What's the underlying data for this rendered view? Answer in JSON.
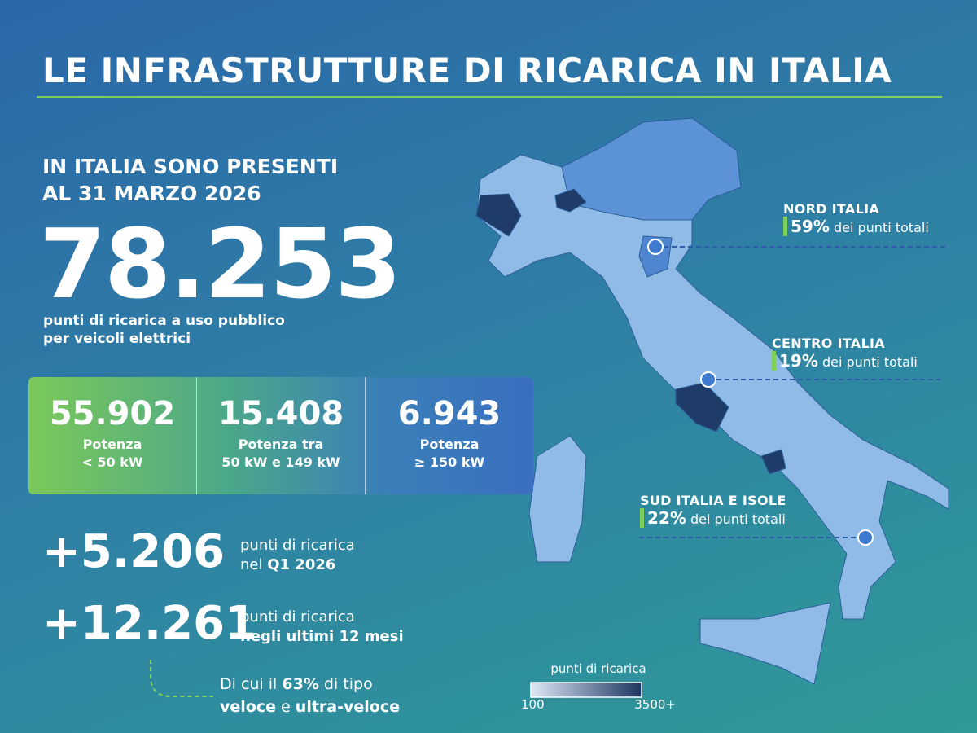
{
  "header": {
    "title": "LE INFRASTRUTTURE DI RICARICA IN ITALIA"
  },
  "intro": {
    "lines": [
      "IN ITALIA SONO PRESENTI",
      "AL 31 MARZO 2026"
    ],
    "total": "78.253",
    "caption_lines": [
      "punti di ricarica a uso pubblico",
      "per veicoli elettrici"
    ]
  },
  "power_boxes": [
    {
      "value": "55.902",
      "label_lines": [
        "Potenza",
        "< 50 kW"
      ]
    },
    {
      "value": "15.408",
      "label_lines": [
        "Potenza tra",
        "50 kW e 149 kW"
      ]
    },
    {
      "value": "6.943",
      "label_lines": [
        "Potenza",
        "≥ 150 kW"
      ]
    }
  ],
  "growth": [
    {
      "value": "+5.206",
      "line1": "punti di ricarica",
      "line2_normal": "nel",
      "line2_bold": "Q1 2026"
    },
    {
      "value": "+12.261",
      "line1": "punti di ricarica",
      "line2_bold": "negli ultimi 12 mesi"
    }
  ],
  "note": {
    "line1": [
      "Di cui il",
      "63%",
      "di tipo"
    ],
    "line2": [
      "veloce",
      "e",
      "ultra-veloce"
    ]
  },
  "regions": [
    {
      "name": "NORD ITALIA",
      "percent": "59%",
      "suffix": "dei punti totali"
    },
    {
      "name": "CENTRO ITALIA",
      "percent": "19%",
      "suffix": "dei punti totali"
    },
    {
      "name": "SUD ITALIA E ISOLE",
      "percent": "22%",
      "suffix": "dei punti totali"
    }
  ],
  "legend": {
    "title": "punti di ricarica",
    "min": "100",
    "max": "3500+"
  }
}
